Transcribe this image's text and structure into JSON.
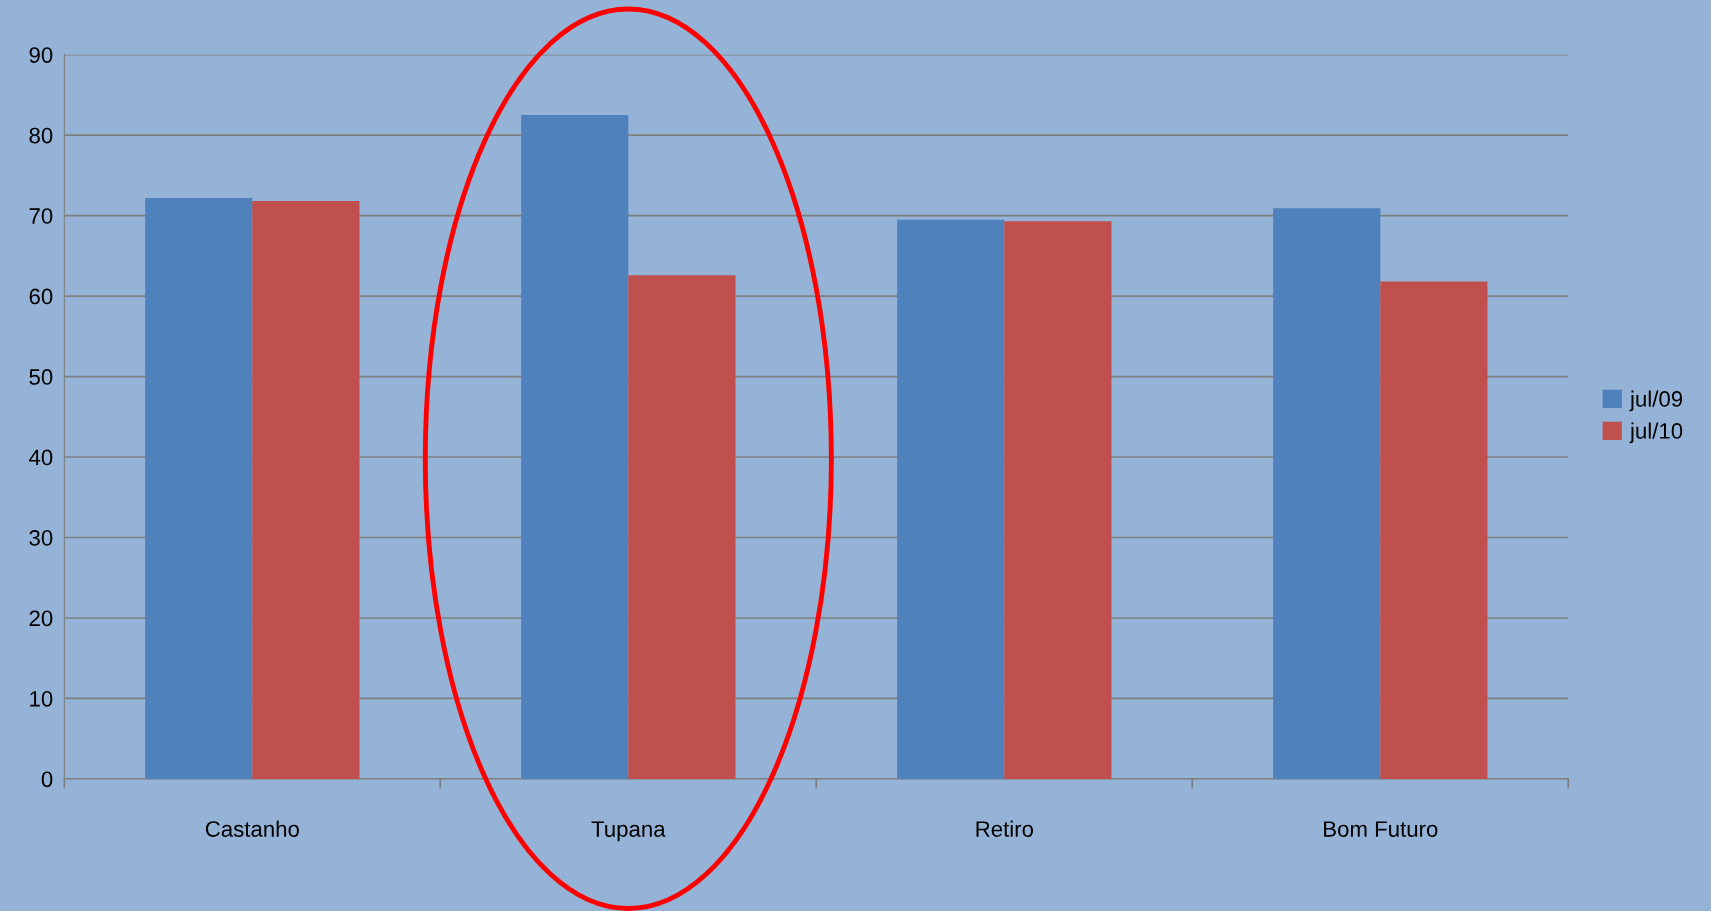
{
  "chart_data": {
    "type": "bar",
    "categories": [
      "Castanho",
      "Tupana",
      "Retiro",
      "Bom Futuro"
    ],
    "series": [
      {
        "name": "jul/09",
        "color": "#4f81bd",
        "values": [
          72.2,
          82.5,
          69.5,
          70.9
        ]
      },
      {
        "name": "jul/10",
        "color": "#c0504d",
        "values": [
          71.8,
          62.6,
          69.3,
          61.8
        ]
      }
    ],
    "ylim": [
      0,
      90
    ],
    "yticks": [
      0,
      10,
      20,
      30,
      40,
      50,
      60,
      70,
      80,
      90
    ],
    "grid": "y",
    "legend": "right"
  }
}
